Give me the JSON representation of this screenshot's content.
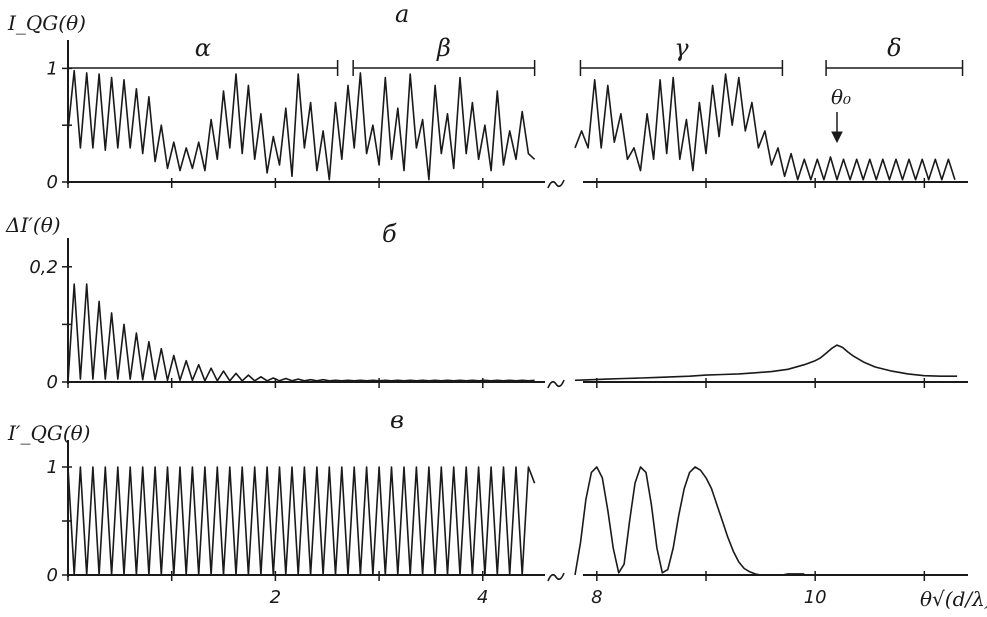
{
  "colors": {
    "ink": "#1a1a1a",
    "paper": "#ffffff"
  },
  "x_axis_label": "θ√(d/λ)",
  "chart_data": [
    {
      "type": "line",
      "panel_label": "а",
      "ylabel": "I_QG(θ)",
      "y_ticks": [
        {
          "value": 0,
          "label": "0"
        },
        {
          "value": 0.5,
          "label": ""
        },
        {
          "value": 1,
          "label": "1"
        }
      ],
      "ylim": [
        0,
        1.25
      ],
      "left_segment": {
        "xlim": [
          0,
          4.6
        ],
        "x_ticks": [
          0,
          1,
          2,
          3,
          4
        ]
      },
      "right_segment": {
        "xlim": [
          7.8,
          11.4
        ],
        "x_ticks": [
          8,
          9,
          10,
          11
        ]
      },
      "broken_axis": true,
      "regions": [
        {
          "label": "α",
          "x_start": 0.0,
          "x_end": 2.6,
          "segment": "left"
        },
        {
          "label": "β",
          "x_start": 2.75,
          "x_end": 4.5,
          "segment": "left"
        },
        {
          "label": "γ",
          "x_start": 7.85,
          "x_end": 9.7,
          "segment": "right"
        },
        {
          "label": "δ",
          "x_start": 10.1,
          "x_end": 11.35,
          "segment": "right"
        }
      ],
      "annotation": {
        "label": "θ₀",
        "x": 10.2,
        "segment": "right"
      },
      "series_left": {
        "x": [
          0.0,
          0.06,
          0.12,
          0.18,
          0.24,
          0.3,
          0.36,
          0.42,
          0.48,
          0.54,
          0.6,
          0.66,
          0.72,
          0.78,
          0.84,
          0.9,
          0.96,
          1.02,
          1.08,
          1.14,
          1.2,
          1.26,
          1.32,
          1.38,
          1.44,
          1.5,
          1.56,
          1.62,
          1.68,
          1.74,
          1.8,
          1.86,
          1.92,
          1.98,
          2.04,
          2.1,
          2.16,
          2.22,
          2.28,
          2.34,
          2.4,
          2.46,
          2.52,
          2.58,
          2.64,
          2.7,
          2.76,
          2.82,
          2.88,
          2.94,
          3.0,
          3.06,
          3.12,
          3.18,
          3.24,
          3.3,
          3.36,
          3.42,
          3.48,
          3.54,
          3.6,
          3.66,
          3.72,
          3.78,
          3.84,
          3.9,
          3.96,
          4.02,
          4.08,
          4.14,
          4.2,
          4.26,
          4.32,
          4.38,
          4.44,
          4.5
        ],
        "y": [
          0.45,
          0.98,
          0.3,
          0.96,
          0.3,
          0.95,
          0.28,
          0.92,
          0.3,
          0.9,
          0.3,
          0.82,
          0.25,
          0.75,
          0.18,
          0.5,
          0.12,
          0.35,
          0.1,
          0.3,
          0.12,
          0.35,
          0.1,
          0.55,
          0.2,
          0.8,
          0.3,
          0.95,
          0.25,
          0.85,
          0.2,
          0.6,
          0.08,
          0.4,
          0.15,
          0.65,
          0.05,
          0.95,
          0.3,
          0.7,
          0.1,
          0.45,
          0.02,
          0.7,
          0.2,
          0.85,
          0.3,
          0.96,
          0.25,
          0.5,
          0.15,
          0.92,
          0.2,
          0.65,
          0.1,
          0.95,
          0.3,
          0.55,
          0.02,
          0.85,
          0.25,
          0.6,
          0.12,
          0.92,
          0.25,
          0.7,
          0.2,
          0.5,
          0.1,
          0.8,
          0.15,
          0.45,
          0.2,
          0.62,
          0.25,
          0.2
        ]
      },
      "series_right": {
        "x": [
          7.8,
          7.86,
          7.92,
          7.98,
          8.04,
          8.1,
          8.16,
          8.22,
          8.28,
          8.34,
          8.4,
          8.46,
          8.52,
          8.58,
          8.64,
          8.7,
          8.76,
          8.82,
          8.88,
          8.94,
          9.0,
          9.06,
          9.12,
          9.18,
          9.24,
          9.3,
          9.36,
          9.42,
          9.48,
          9.54,
          9.6,
          9.66,
          9.72,
          9.78,
          9.84,
          9.9,
          9.96,
          10.02,
          10.08,
          10.14,
          10.2,
          10.26,
          10.32,
          10.38,
          10.44,
          10.5,
          10.56,
          10.62,
          10.68,
          10.74,
          10.8,
          10.86,
          10.92,
          10.98,
          11.04,
          11.1,
          11.16,
          11.22,
          11.28
        ],
        "y": [
          0.3,
          0.45,
          0.3,
          0.9,
          0.3,
          0.85,
          0.35,
          0.6,
          0.2,
          0.3,
          0.1,
          0.6,
          0.2,
          0.9,
          0.25,
          0.92,
          0.2,
          0.55,
          0.1,
          0.7,
          0.25,
          0.85,
          0.4,
          0.95,
          0.5,
          0.92,
          0.45,
          0.7,
          0.3,
          0.45,
          0.15,
          0.3,
          0.05,
          0.25,
          0.02,
          0.2,
          0.02,
          0.2,
          0.02,
          0.22,
          0.02,
          0.2,
          0.02,
          0.2,
          0.02,
          0.2,
          0.02,
          0.2,
          0.02,
          0.2,
          0.02,
          0.2,
          0.02,
          0.2,
          0.02,
          0.2,
          0.02,
          0.2,
          0.02
        ]
      }
    },
    {
      "type": "line",
      "panel_label": "б",
      "ylabel": "ΔI′(θ)",
      "y_ticks": [
        {
          "value": 0,
          "label": "0"
        },
        {
          "value": 0.1,
          "label": ""
        },
        {
          "value": 0.2,
          "label": "0,2"
        }
      ],
      "ylim": [
        0,
        0.25
      ],
      "left_segment": {
        "xlim": [
          0,
          4.6
        ],
        "x_ticks": [
          0,
          1,
          2,
          3,
          4
        ]
      },
      "right_segment": {
        "xlim": [
          7.8,
          11.4
        ],
        "x_ticks": [
          8,
          9,
          10,
          11
        ]
      },
      "broken_axis": true,
      "series_left": {
        "x": [
          0.0,
          0.06,
          0.12,
          0.18,
          0.24,
          0.3,
          0.36,
          0.42,
          0.48,
          0.54,
          0.6,
          0.66,
          0.72,
          0.78,
          0.84,
          0.9,
          0.96,
          1.02,
          1.08,
          1.14,
          1.2,
          1.26,
          1.32,
          1.38,
          1.44,
          1.5,
          1.56,
          1.62,
          1.68,
          1.74,
          1.8,
          1.86,
          1.92,
          1.98,
          2.04,
          2.1,
          2.16,
          2.22,
          2.28,
          2.34,
          2.4,
          2.46,
          2.52,
          2.58,
          2.64,
          2.7,
          2.76,
          2.82,
          2.88,
          2.94,
          3.0,
          3.06,
          3.12,
          3.18,
          3.24,
          3.3,
          3.36,
          3.42,
          3.48,
          3.54,
          3.6,
          3.66,
          3.72,
          3.78,
          3.84,
          3.9,
          3.96,
          4.02,
          4.08,
          4.14,
          4.2,
          4.26,
          4.32,
          4.38,
          4.44,
          4.5
        ],
        "y": [
          0.0,
          0.17,
          0.005,
          0.17,
          0.005,
          0.14,
          0.005,
          0.12,
          0.005,
          0.1,
          0.005,
          0.085,
          0.004,
          0.07,
          0.004,
          0.058,
          0.003,
          0.046,
          0.003,
          0.037,
          0.003,
          0.03,
          0.002,
          0.024,
          0.002,
          0.019,
          0.002,
          0.015,
          0.002,
          0.012,
          0.002,
          0.009,
          0.002,
          0.007,
          0.002,
          0.006,
          0.002,
          0.005,
          0.002,
          0.004,
          0.002,
          0.004,
          0.002,
          0.003,
          0.002,
          0.003,
          0.002,
          0.003,
          0.002,
          0.003,
          0.002,
          0.003,
          0.002,
          0.003,
          0.002,
          0.003,
          0.002,
          0.003,
          0.002,
          0.003,
          0.002,
          0.003,
          0.002,
          0.003,
          0.002,
          0.003,
          0.002,
          0.003,
          0.002,
          0.003,
          0.002,
          0.003,
          0.002,
          0.003,
          0.002,
          0.003
        ]
      },
      "series_right": {
        "x": [
          7.8,
          7.95,
          8.1,
          8.25,
          8.4,
          8.55,
          8.7,
          8.85,
          9.0,
          9.15,
          9.3,
          9.45,
          9.6,
          9.75,
          9.9,
          10.0,
          10.05,
          10.1,
          10.15,
          10.2,
          10.25,
          10.3,
          10.35,
          10.45,
          10.55,
          10.7,
          10.85,
          11.0,
          11.15,
          11.3
        ],
        "y": [
          0.003,
          0.004,
          0.005,
          0.006,
          0.007,
          0.008,
          0.009,
          0.01,
          0.012,
          0.013,
          0.014,
          0.016,
          0.018,
          0.022,
          0.03,
          0.037,
          0.042,
          0.05,
          0.058,
          0.064,
          0.06,
          0.052,
          0.045,
          0.034,
          0.026,
          0.019,
          0.014,
          0.011,
          0.01,
          0.01
        ]
      }
    },
    {
      "type": "line",
      "panel_label": "в",
      "ylabel": "I′_QG(θ)",
      "y_ticks": [
        {
          "value": 0,
          "label": "0"
        },
        {
          "value": 0.5,
          "label": ""
        },
        {
          "value": 1,
          "label": "1"
        }
      ],
      "ylim": [
        0,
        1.25
      ],
      "left_segment": {
        "xlim": [
          0,
          4.6
        ],
        "x_ticks": [
          0,
          1,
          2,
          3,
          4
        ],
        "x_tick_labels": [
          "",
          "",
          "2",
          "",
          "4"
        ]
      },
      "right_segment": {
        "xlim": [
          7.8,
          11.4
        ],
        "x_ticks": [
          8,
          9,
          10,
          11
        ],
        "x_tick_labels": [
          "8",
          "",
          "10",
          ""
        ]
      },
      "broken_axis": true,
      "series_left": {
        "x": [
          0.0,
          0.06,
          0.12,
          0.18,
          0.24,
          0.3,
          0.36,
          0.42,
          0.48,
          0.54,
          0.6,
          0.66,
          0.72,
          0.78,
          0.84,
          0.9,
          0.96,
          1.02,
          1.08,
          1.14,
          1.2,
          1.26,
          1.32,
          1.38,
          1.44,
          1.5,
          1.56,
          1.62,
          1.68,
          1.74,
          1.8,
          1.86,
          1.92,
          1.98,
          2.04,
          2.1,
          2.16,
          2.22,
          2.28,
          2.34,
          2.4,
          2.46,
          2.52,
          2.58,
          2.64,
          2.7,
          2.76,
          2.82,
          2.88,
          2.94,
          3.0,
          3.06,
          3.12,
          3.18,
          3.24,
          3.3,
          3.36,
          3.42,
          3.48,
          3.54,
          3.6,
          3.66,
          3.72,
          3.78,
          3.84,
          3.9,
          3.96,
          4.02,
          4.08,
          4.14,
          4.2,
          4.26,
          4.32,
          4.38,
          4.44,
          4.5
        ],
        "y": [
          1.0,
          0.0,
          1.0,
          0.0,
          1.0,
          0.0,
          1.0,
          0.0,
          1.0,
          0.0,
          1.0,
          0.0,
          1.0,
          0.0,
          1.0,
          0.0,
          1.0,
          0.0,
          1.0,
          0.0,
          1.0,
          0.0,
          1.0,
          0.0,
          1.0,
          0.0,
          1.0,
          0.0,
          1.0,
          0.0,
          1.0,
          0.0,
          1.0,
          0.0,
          1.0,
          0.0,
          1.0,
          0.0,
          1.0,
          0.0,
          1.0,
          0.0,
          1.0,
          0.0,
          1.0,
          0.0,
          1.0,
          0.0,
          1.0,
          0.0,
          1.0,
          0.0,
          1.0,
          0.0,
          1.0,
          0.0,
          1.0,
          0.0,
          1.0,
          0.0,
          1.0,
          0.0,
          1.0,
          0.0,
          1.0,
          0.0,
          1.0,
          0.0,
          1.0,
          0.0,
          1.0,
          0.0,
          1.0,
          0.0,
          1.0,
          0.85
        ]
      },
      "series_right": {
        "x": [
          7.8,
          7.85,
          7.9,
          7.95,
          8.0,
          8.05,
          8.1,
          8.15,
          8.2,
          8.25,
          8.3,
          8.35,
          8.4,
          8.45,
          8.5,
          8.55,
          8.6,
          8.65,
          8.7,
          8.75,
          8.8,
          8.85,
          8.9,
          8.95,
          9.0,
          9.05,
          9.1,
          9.15,
          9.2,
          9.25,
          9.3,
          9.35,
          9.4,
          9.45,
          9.5,
          9.55,
          9.6,
          9.65,
          9.7,
          9.75,
          9.8,
          9.85,
          9.9
        ],
        "y": [
          0.0,
          0.3,
          0.7,
          0.95,
          1.0,
          0.9,
          0.6,
          0.25,
          0.02,
          0.1,
          0.5,
          0.85,
          1.0,
          0.95,
          0.65,
          0.25,
          0.02,
          0.05,
          0.25,
          0.55,
          0.8,
          0.95,
          1.0,
          0.97,
          0.9,
          0.8,
          0.65,
          0.5,
          0.35,
          0.22,
          0.12,
          0.06,
          0.03,
          0.01,
          0.0,
          0.0,
          0.0,
          0.0,
          0.0,
          0.01,
          0.01,
          0.01,
          0.01
        ]
      }
    }
  ]
}
